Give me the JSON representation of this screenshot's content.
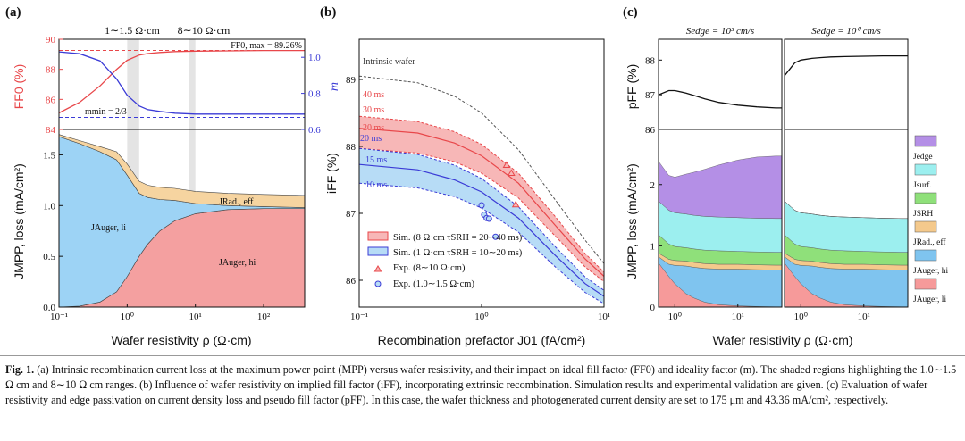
{
  "panel_labels": [
    "(a)",
    "(b)",
    "(c)"
  ],
  "caption": {
    "fig_label": "Fig. 1.",
    "text": "(a) Intrinsic recombination current loss at the maximum power point (MPP) versus wafer resistivity, and their impact on ideal fill factor (FF0) and ideality factor (m). The shaded regions highlighting the 1.0∼1.5 Ω cm and 8∼10 Ω cm ranges. (b) Influence of wafer resistivity on implied fill factor (iFF), incorporating extrinsic recombination. Simulation results and experimental validation are given. (c) Evaluation of wafer resistivity and edge passivation on current density loss and pseudo fill factor (pFF). In this case, the wafer thickness and photogenerated current density are set to 175 μm and 43.36 mA/cm², respectively."
  },
  "chart_data": [
    {
      "id": "a-top",
      "type": "line",
      "title": "",
      "range_labels": [
        "1∼1.5 Ω·cm",
        "8∼10 Ω·cm"
      ],
      "xlabel": "Wafer resistivity ρ (Ω·cm)",
      "ylabel_left": "FF0 (%)",
      "ylabel_right": "m",
      "xlim": [
        0.1,
        400
      ],
      "xscale": "log",
      "ylim_left": [
        84,
        90
      ],
      "yticks_left": [
        "84",
        "86",
        "88",
        "90"
      ],
      "ylim_right": [
        0.6,
        1.1
      ],
      "yticks_right": [
        "0.6",
        "0.8",
        "1.0"
      ],
      "annotations": [
        "FF0, max = 89.26%",
        "mmin = 2/3"
      ],
      "series": [
        {
          "name": "FF0",
          "axis": "left",
          "color": "#e8474a",
          "x": [
            0.1,
            0.2,
            0.4,
            0.7,
            1,
            1.5,
            2,
            3,
            5,
            10,
            30,
            100,
            400
          ],
          "y": [
            85.1,
            85.8,
            86.9,
            88.0,
            88.6,
            88.95,
            89.05,
            89.12,
            89.18,
            89.21,
            89.23,
            89.25,
            89.25
          ]
        },
        {
          "name": "m",
          "axis": "right",
          "color": "#3b3bd6",
          "x": [
            0.1,
            0.2,
            0.4,
            0.7,
            1,
            1.5,
            2,
            3,
            5,
            10,
            30,
            100,
            400
          ],
          "y": [
            1.03,
            1.02,
            0.98,
            0.88,
            0.79,
            0.73,
            0.71,
            0.7,
            0.69,
            0.685,
            0.685,
            0.685,
            0.685
          ]
        }
      ],
      "ref_lines": [
        {
          "axis": "left",
          "y": 89.26,
          "color": "#e8474a"
        },
        {
          "axis": "right",
          "y": 0.6667,
          "color": "#3b3bd6"
        }
      ]
    },
    {
      "id": "a-bottom",
      "type": "area",
      "xlabel": "Wafer resistivity ρ (Ω·cm)",
      "ylabel": "JMPP, loss (mA/cm²)",
      "xlim": [
        0.1,
        400
      ],
      "xscale": "log",
      "ylim": [
        0,
        1.75
      ],
      "xticks": [
        "10⁻¹",
        "10⁰",
        "10¹",
        "10²"
      ],
      "yticks": [
        "0.0",
        "0.5",
        "1.0",
        "1.5"
      ],
      "x": [
        0.1,
        0.2,
        0.4,
        0.7,
        1,
        1.5,
        2,
        3,
        5,
        10,
        30,
        100,
        400
      ],
      "series": [
        {
          "name": "JAuger, hi",
          "color": "#f4a0a0",
          "values": [
            0,
            0.01,
            0.05,
            0.15,
            0.3,
            0.5,
            0.62,
            0.75,
            0.85,
            0.92,
            0.96,
            0.97,
            0.97
          ]
        },
        {
          "name": "JAuger, li",
          "color": "#9dd3f5",
          "values": [
            1.68,
            1.6,
            1.48,
            1.3,
            1.0,
            0.62,
            0.46,
            0.31,
            0.2,
            0.1,
            0.04,
            0.02,
            0.01
          ]
        },
        {
          "name": "JRad., eff",
          "color": "#f6d4a0",
          "values": [
            0.02,
            0.03,
            0.05,
            0.08,
            0.11,
            0.12,
            0.12,
            0.12,
            0.12,
            0.12,
            0.12,
            0.12,
            0.12
          ]
        }
      ],
      "labels": [
        "JAuger, li",
        "JAuger, hi",
        "JRad., eff"
      ]
    },
    {
      "id": "b",
      "type": "line",
      "xlabel": "Recombination prefactor J01 (fA/cm²)",
      "ylabel": "iFF (%)",
      "xlim": [
        0.1,
        10
      ],
      "xscale": "log",
      "ylim": [
        85.6,
        89.6
      ],
      "xticks": [
        "10⁻¹",
        "10⁰",
        "10¹"
      ],
      "yticks": [
        "86",
        "87",
        "88",
        "89"
      ],
      "annotations": [
        "Intrinsic wafer",
        "40 ms",
        "30 ms",
        "20 ms",
        "20 ms",
        "15 ms",
        "10 ms"
      ],
      "intrinsic": {
        "x": [
          0.1,
          0.3,
          0.6,
          1,
          2,
          4,
          7,
          10
        ],
        "y": [
          89.05,
          88.95,
          88.75,
          88.5,
          87.95,
          87.2,
          86.6,
          86.25
        ]
      },
      "band_8ohm": {
        "upper": {
          "x": [
            0.1,
            0.3,
            0.6,
            1,
            2,
            4,
            7,
            10
          ],
          "y": [
            88.45,
            88.37,
            88.22,
            88.03,
            87.6,
            86.95,
            86.4,
            86.12
          ]
        },
        "mid": {
          "x": [
            0.1,
            0.3,
            0.6,
            1,
            2,
            4,
            7,
            10
          ],
          "y": [
            88.27,
            88.2,
            88.05,
            87.86,
            87.45,
            86.82,
            86.32,
            86.06
          ]
        },
        "lower": {
          "x": [
            0.1,
            0.3,
            0.6,
            1,
            2,
            4,
            7,
            10
          ],
          "y": [
            87.97,
            87.9,
            87.77,
            87.6,
            87.23,
            86.66,
            86.2,
            85.98
          ]
        }
      },
      "band_1ohm": {
        "upper": {
          "x": [
            0.1,
            0.3,
            0.6,
            1,
            2,
            4,
            7,
            10
          ],
          "y": [
            87.97,
            87.88,
            87.72,
            87.52,
            87.1,
            86.5,
            86.05,
            85.85
          ]
        },
        "mid": {
          "x": [
            0.1,
            0.3,
            0.6,
            1,
            2,
            4,
            7,
            10
          ],
          "y": [
            87.73,
            87.65,
            87.5,
            87.32,
            86.93,
            86.37,
            85.95,
            85.76
          ]
        },
        "lower": {
          "x": [
            0.1,
            0.3,
            0.6,
            1,
            2,
            4,
            7,
            10
          ],
          "y": [
            87.45,
            87.38,
            87.25,
            87.08,
            86.72,
            86.2,
            85.82,
            85.65
          ]
        }
      },
      "exp_8_10": {
        "x": [
          1.6,
          1.75,
          1.9
        ],
        "y": [
          87.72,
          87.6,
          87.13
        ]
      },
      "exp_1_15": {
        "x": [
          1.0,
          1.05,
          1.1,
          1.15,
          1.3
        ],
        "y": [
          87.12,
          86.98,
          86.93,
          86.92,
          86.65
        ]
      },
      "legend": [
        "Sim. (8 Ω·cm τSRH = 20∼40 ms)",
        "Sim. (1 Ω·cm τSRH = 10∼20 ms)",
        "Exp. (8∼10 Ω·cm)",
        "Exp. (1.0∼1.5 Ω·cm)"
      ]
    },
    {
      "id": "c",
      "type": "area",
      "xlabel": "Wafer resistivity ρ (Ω·cm)",
      "ylabel_top": "pFF (%)",
      "ylabel_bottom": "JMPP, loss (mA/cm²)",
      "column_titles": [
        "Sedge = 10³ cm/s",
        "Sedge = 10⁰ cm/s"
      ],
      "xlim": [
        0.55,
        50
      ],
      "xscale": "log",
      "xticks": [
        "10⁰",
        "10¹"
      ],
      "ylim_top": [
        86,
        88.6
      ],
      "yticks_top": [
        "86",
        "87",
        "88"
      ],
      "ylim_bottom": [
        0,
        2.9
      ],
      "yticks_bottom": [
        "0",
        "1",
        "2"
      ],
      "x": [
        0.55,
        0.8,
        1,
        1.5,
        2,
        3,
        5,
        10,
        20,
        40,
        50
      ],
      "pff_left": [
        87.0,
        87.12,
        87.12,
        87.05,
        86.98,
        86.88,
        86.78,
        86.7,
        86.65,
        86.62,
        86.62
      ],
      "pff_right": [
        87.55,
        87.92,
        88.0,
        88.05,
        88.07,
        88.09,
        88.1,
        88.11,
        88.12,
        88.12,
        88.12
      ],
      "series_names": [
        "JAuger, li",
        "JAuger, hi",
        "JRad., eff",
        "JSRH",
        "Jsurf.",
        "Jedge"
      ],
      "series_colors": [
        "#f69a9a",
        "#7fc4ef",
        "#f4c98c",
        "#8fe07a",
        "#9cefef",
        "#b48fe6"
      ],
      "stacks_left": [
        [
          0.72,
          0.5,
          0.38,
          0.22,
          0.15,
          0.08,
          0.04,
          0.02,
          0.01,
          0.005,
          0.005
        ],
        [
          0.1,
          0.2,
          0.3,
          0.45,
          0.5,
          0.55,
          0.58,
          0.6,
          0.6,
          0.6,
          0.6
        ],
        [
          0.06,
          0.08,
          0.08,
          0.08,
          0.08,
          0.08,
          0.08,
          0.08,
          0.08,
          0.08,
          0.08
        ],
        [
          0.3,
          0.25,
          0.23,
          0.22,
          0.22,
          0.22,
          0.22,
          0.21,
          0.21,
          0.21,
          0.21
        ],
        [
          0.55,
          0.55,
          0.55,
          0.55,
          0.55,
          0.55,
          0.55,
          0.55,
          0.55,
          0.55,
          0.55
        ],
        [
          0.65,
          0.57,
          0.58,
          0.65,
          0.7,
          0.77,
          0.85,
          0.94,
          1.0,
          1.02,
          1.02
        ]
      ],
      "stacks_right": [
        [
          0.72,
          0.5,
          0.38,
          0.22,
          0.15,
          0.08,
          0.04,
          0.02,
          0.01,
          0.005,
          0.005
        ],
        [
          0.1,
          0.2,
          0.3,
          0.45,
          0.5,
          0.55,
          0.58,
          0.6,
          0.6,
          0.6,
          0.6
        ],
        [
          0.06,
          0.08,
          0.08,
          0.08,
          0.08,
          0.08,
          0.08,
          0.08,
          0.08,
          0.08,
          0.08
        ],
        [
          0.3,
          0.25,
          0.23,
          0.22,
          0.22,
          0.22,
          0.22,
          0.21,
          0.21,
          0.21,
          0.21
        ],
        [
          0.55,
          0.55,
          0.55,
          0.55,
          0.55,
          0.55,
          0.55,
          0.55,
          0.55,
          0.55,
          0.55
        ],
        [
          0.0,
          0.0,
          0.0,
          0.0,
          0.0,
          0.0,
          0.0,
          0.0,
          0.0,
          0.0,
          0.0
        ]
      ],
      "legend": [
        "Jedge",
        "Jsurf.",
        "JSRH",
        "JRad., eff",
        "JAuger, hi",
        "JAuger, li"
      ]
    }
  ]
}
